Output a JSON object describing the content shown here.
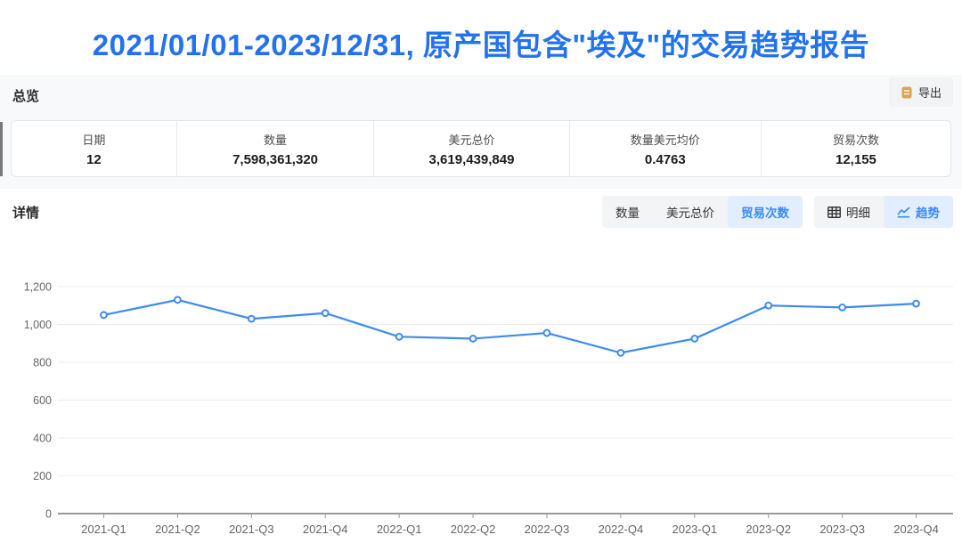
{
  "title": "2021/01/01-2023/12/31, 原产国包含\"埃及\"的交易趋势报告",
  "colors": {
    "title_blue": "#2272f0",
    "line": "#3d8bf2",
    "active_tab_bg": "#e2eefd",
    "active_tab_text": "#3a8bf8",
    "grid": "#ededf0",
    "axis": "#999999",
    "tick_label": "#666666",
    "export_icon": "#dca54f"
  },
  "overview": {
    "heading": "总览",
    "export_label": "导出",
    "stats": [
      {
        "label": "日期",
        "value": "12"
      },
      {
        "label": "数量",
        "value": "7,598,361,320"
      },
      {
        "label": "美元总价",
        "value": "3,619,439,849"
      },
      {
        "label": "数量美元均价",
        "value": "0.4763"
      },
      {
        "label": "贸易次数",
        "value": "12,155"
      }
    ]
  },
  "details": {
    "heading": "详情",
    "metric_tabs": [
      {
        "label": "数量",
        "active": false
      },
      {
        "label": "美元总价",
        "active": false
      },
      {
        "label": "贸易次数",
        "active": true
      }
    ],
    "view_tabs": [
      {
        "label": "明细",
        "icon": "table-icon",
        "active": false
      },
      {
        "label": "趋势",
        "icon": "trend-icon",
        "active": true
      }
    ]
  },
  "chart_data": {
    "type": "line",
    "title": "",
    "xlabel": "",
    "ylabel": "",
    "categories": [
      "2021-Q1",
      "2021-Q2",
      "2021-Q3",
      "2021-Q4",
      "2022-Q1",
      "2022-Q2",
      "2022-Q3",
      "2022-Q4",
      "2023-Q1",
      "2023-Q2",
      "2023-Q3",
      "2023-Q4"
    ],
    "series": [
      {
        "name": "贸易次数",
        "values": [
          1050,
          1130,
          1030,
          1060,
          935,
          925,
          955,
          850,
          925,
          1100,
          1090,
          1110
        ]
      }
    ],
    "ylim": [
      0,
      1200
    ],
    "ytick_step": 200,
    "grid": true,
    "legend_position": "none",
    "marker": "circle-open"
  }
}
